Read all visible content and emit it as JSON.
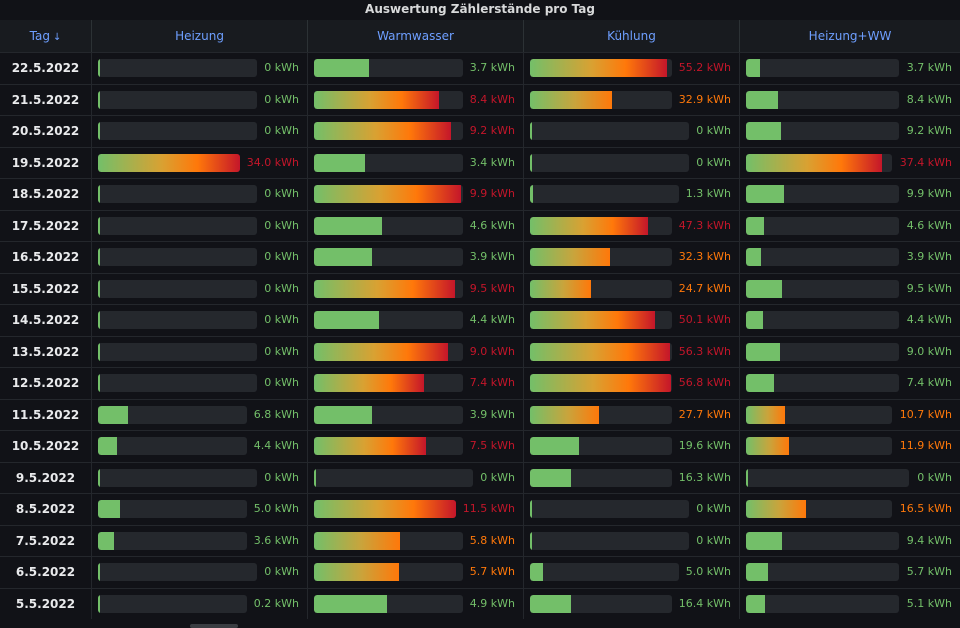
{
  "title": "Auswertung Zählerstände pro Tag",
  "unit": "kWh",
  "columns": [
    {
      "key": "date",
      "label": "Tag",
      "sort_icon": "↓"
    },
    {
      "key": "heizung",
      "label": "Heizung"
    },
    {
      "key": "warmwasser",
      "label": "Warmwasser"
    },
    {
      "key": "kuehlung",
      "label": "Kühlung"
    },
    {
      "key": "heizung_ww",
      "label": "Heizung+WW"
    }
  ],
  "colors": {
    "green": "#73bf69",
    "orange": "#ff780a",
    "red": "#c4162a",
    "track": "#25282d"
  },
  "rows": [
    {
      "date": "22.5.2022",
      "heizung": "0",
      "warmwasser": "3.7",
      "kuehlung": "55.2",
      "heizung_ww": "3.7"
    },
    {
      "date": "21.5.2022",
      "heizung": "0",
      "warmwasser": "8.4",
      "kuehlung": "32.9",
      "heizung_ww": "8.4"
    },
    {
      "date": "20.5.2022",
      "heizung": "0",
      "warmwasser": "9.2",
      "kuehlung": "0",
      "heizung_ww": "9.2"
    },
    {
      "date": "19.5.2022",
      "heizung": "34.0",
      "warmwasser": "3.4",
      "kuehlung": "0",
      "heizung_ww": "37.4"
    },
    {
      "date": "18.5.2022",
      "heizung": "0",
      "warmwasser": "9.9",
      "kuehlung": "1.3",
      "heizung_ww": "9.9"
    },
    {
      "date": "17.5.2022",
      "heizung": "0",
      "warmwasser": "4.6",
      "kuehlung": "47.3",
      "heizung_ww": "4.6"
    },
    {
      "date": "16.5.2022",
      "heizung": "0",
      "warmwasser": "3.9",
      "kuehlung": "32.3",
      "heizung_ww": "3.9"
    },
    {
      "date": "15.5.2022",
      "heizung": "0",
      "warmwasser": "9.5",
      "kuehlung": "24.7",
      "heizung_ww": "9.5"
    },
    {
      "date": "14.5.2022",
      "heizung": "0",
      "warmwasser": "4.4",
      "kuehlung": "50.1",
      "heizung_ww": "4.4"
    },
    {
      "date": "13.5.2022",
      "heizung": "0",
      "warmwasser": "9.0",
      "kuehlung": "56.3",
      "heizung_ww": "9.0"
    },
    {
      "date": "12.5.2022",
      "heizung": "0",
      "warmwasser": "7.4",
      "kuehlung": "56.8",
      "heizung_ww": "7.4"
    },
    {
      "date": "11.5.2022",
      "heizung": "6.8",
      "warmwasser": "3.9",
      "kuehlung": "27.7",
      "heizung_ww": "10.7"
    },
    {
      "date": "10.5.2022",
      "heizung": "4.4",
      "warmwasser": "7.5",
      "kuehlung": "19.6",
      "heizung_ww": "11.9"
    },
    {
      "date": "9.5.2022",
      "heizung": "0",
      "warmwasser": "0",
      "kuehlung": "16.3",
      "heizung_ww": "0"
    },
    {
      "date": "8.5.2022",
      "heizung": "5.0",
      "warmwasser": "11.5",
      "kuehlung": "0",
      "heizung_ww": "16.5"
    },
    {
      "date": "7.5.2022",
      "heizung": "3.6",
      "warmwasser": "5.8",
      "kuehlung": "0",
      "heizung_ww": "9.4"
    },
    {
      "date": "6.5.2022",
      "heizung": "0",
      "warmwasser": "5.7",
      "kuehlung": "5.0",
      "heizung_ww": "5.7"
    },
    {
      "date": "5.5.2022",
      "heizung": "0.2",
      "warmwasser": "4.9",
      "kuehlung": "16.4",
      "heizung_ww": "5.1"
    }
  ]
}
